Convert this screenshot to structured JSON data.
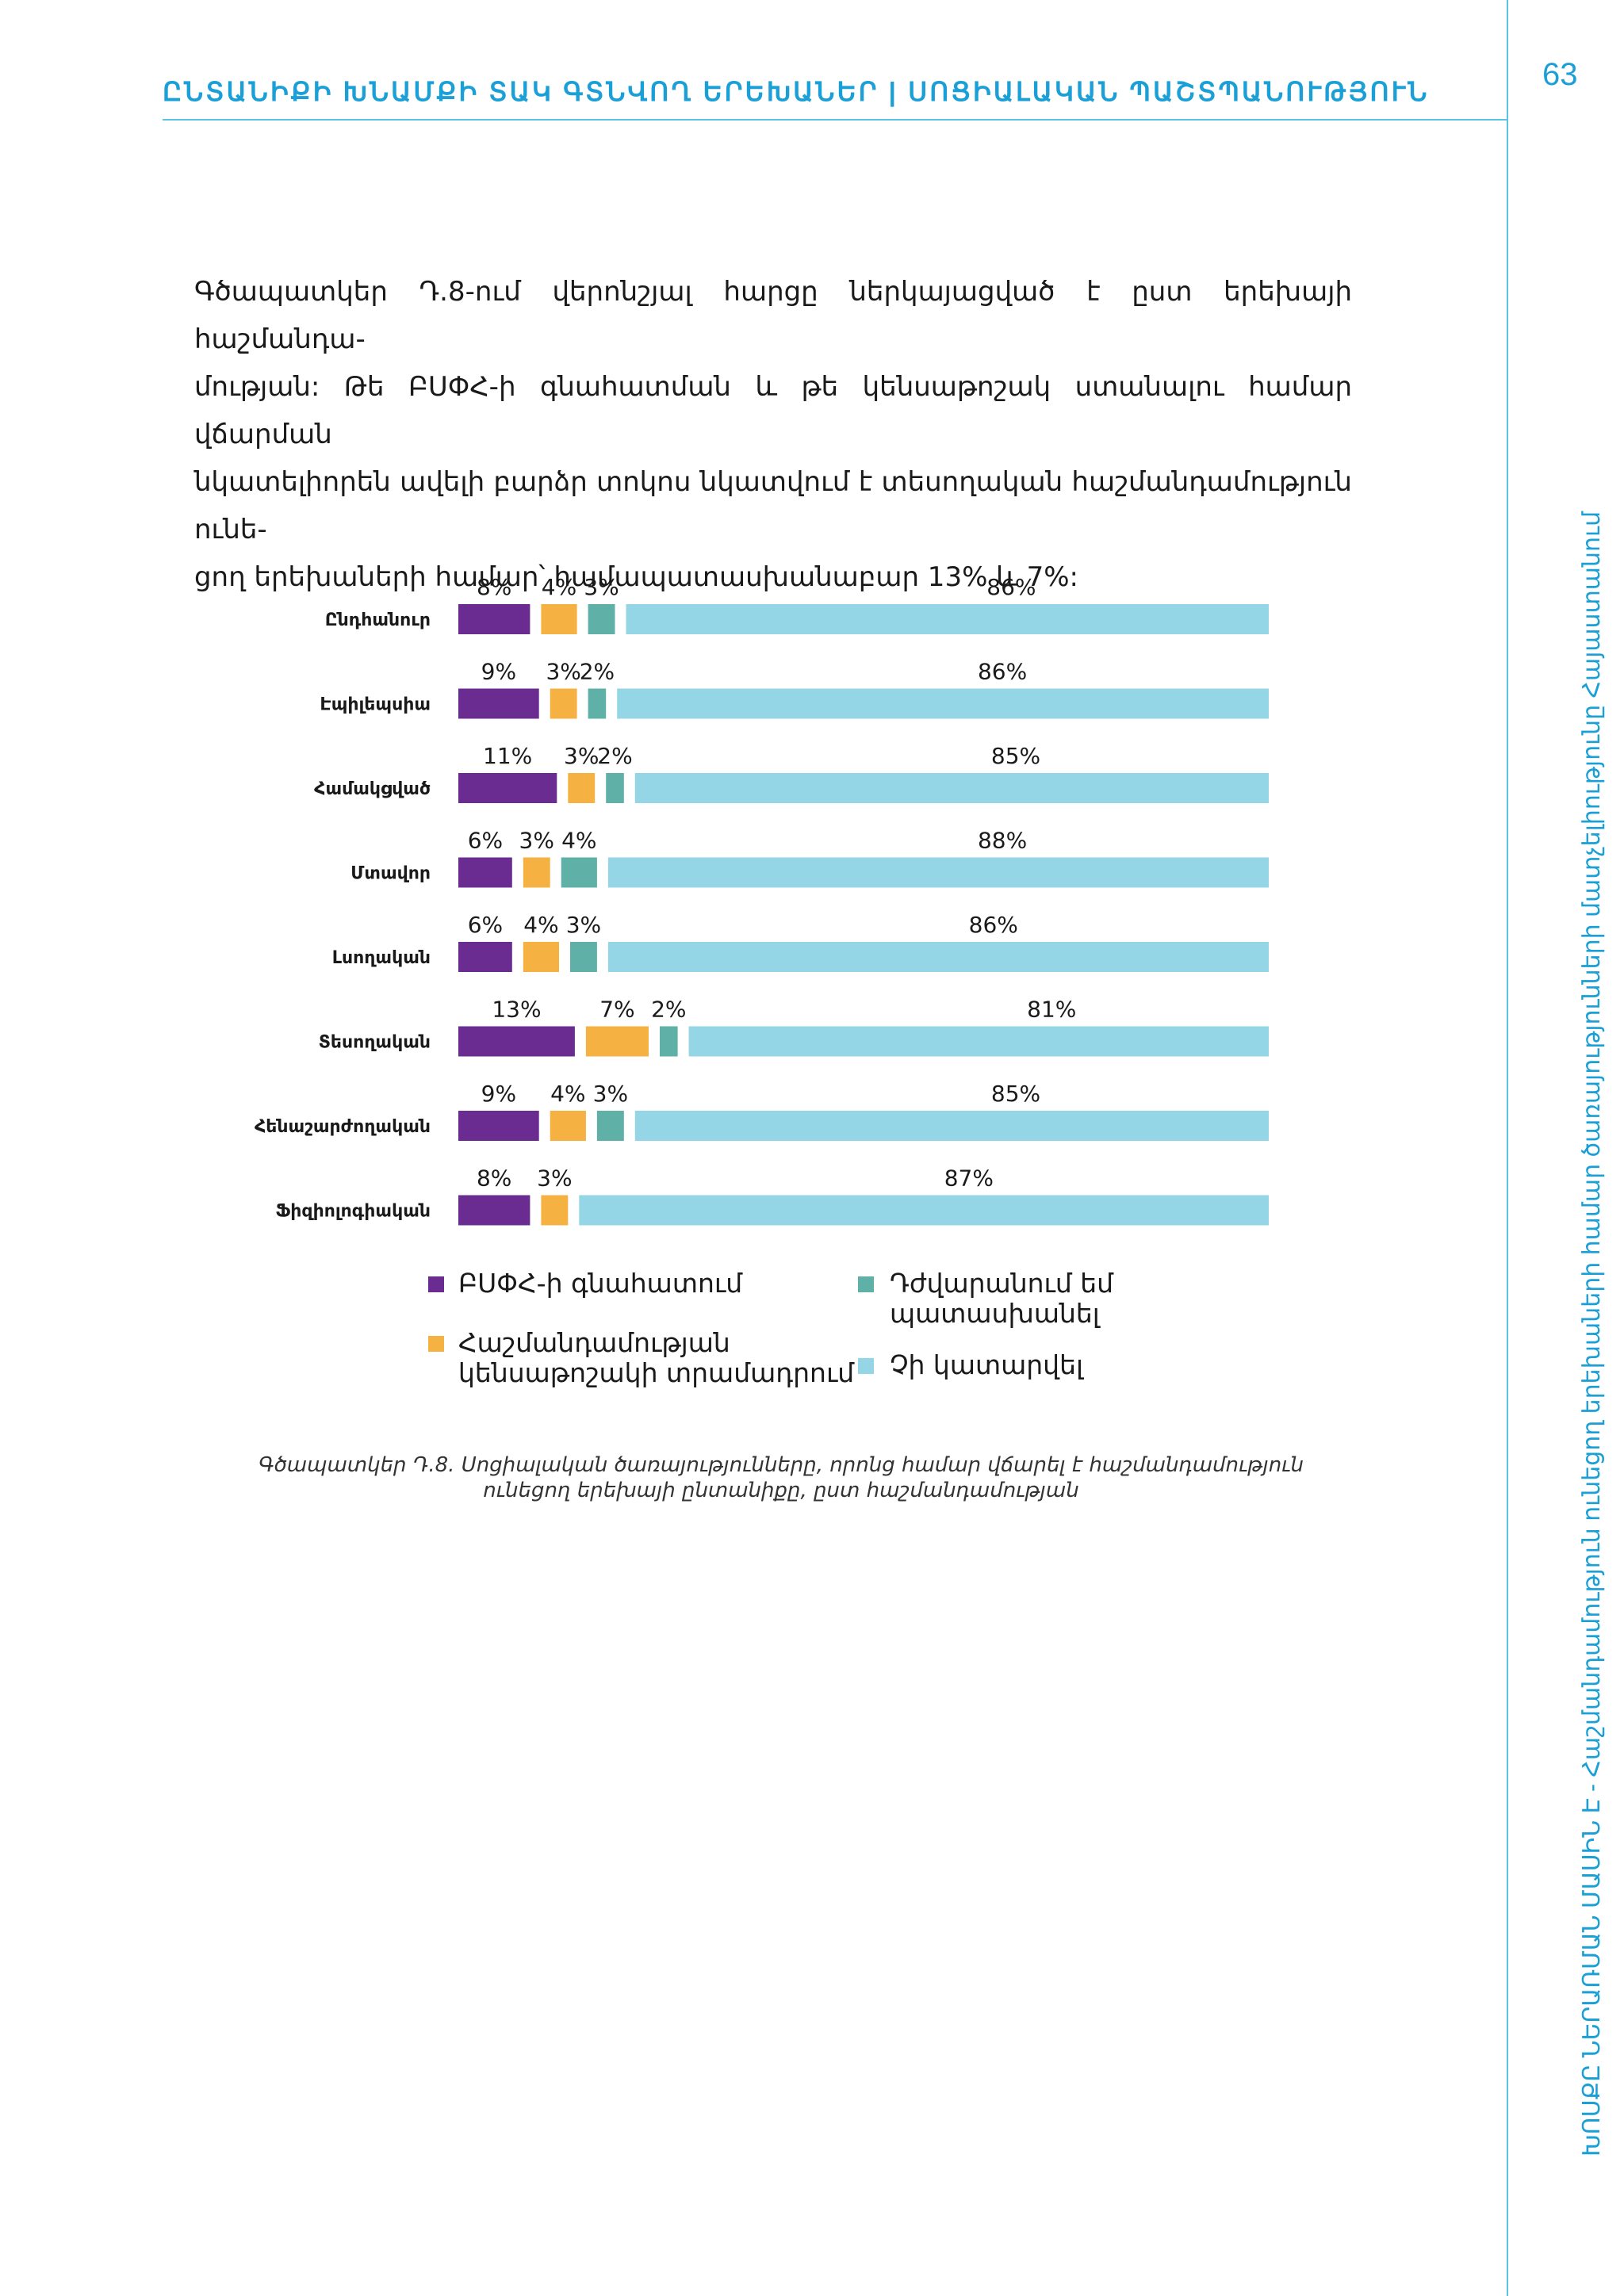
{
  "header": {
    "title": "ԸՆՏԱՆԻՔԻ ԽՆԱՄՔԻ ՏԱԿ ԳՏՆՎՈՂ ԵՐԵԽԱՆԵՐ | ՍՈՑԻԱԼԱԿԱՆ ՊԱՇՏՊԱՆՈՒԹՅՈՒՆ",
    "page_number": "63"
  },
  "side_text": "ԽՈՍՔԸ ՆԵՐԱՌՄԱՆ ՄԱՍԻՆ Է - Հաշմանդամություն ունեցող երեխաների համար ծառայությունների մատչելիությունը Հայաստանում",
  "paragraph": {
    "lines": [
      "Գծապատկեր Դ.8-ում վերոնշյալ հարցը ներկայացված է ըստ երեխայի հաշմանդա-",
      "մության: Թե ԲՍՓՀ-ի գնահատման և թե կենսաթոշակ ստանալու համար վճարման",
      "նկատելիորեն ավելի բարձր տոկոս նկատվում է տեսողական հաշմանդամություն ունե-",
      "ցող երեխաների համար՝ համապատասխանաբար 13% և 7%:"
    ]
  },
  "colors": {
    "purple": "#6a2c91",
    "orange": "#f6b143",
    "teal": "#5fb0a6",
    "lightblue": "#94d6e6",
    "accent": "#1a9fd6"
  },
  "chart_data": {
    "type": "bar",
    "orientation": "horizontal-stacked",
    "categories": [
      "Ընդհանուր",
      "Էպիլեպսիա",
      "Համակցված",
      "Մտավոր",
      "Լսողական",
      "Տեսողական",
      "Հենաշարժողական",
      "Ֆիզիոլոգիական"
    ],
    "series": [
      {
        "name": "ԲՍՓՀ-ի գնահատում",
        "color": "#6a2c91",
        "values": [
          8,
          9,
          11,
          6,
          6,
          13,
          9,
          8
        ]
      },
      {
        "name": "Հաշմանդամության կենսաթոշակի տրամադրում",
        "color": "#f6b143",
        "values": [
          4,
          3,
          3,
          3,
          4,
          7,
          4,
          3
        ]
      },
      {
        "name": "Դժվարանում եմ պատասխանել",
        "color": "#5fb0a6",
        "values": [
          3,
          2,
          2,
          4,
          3,
          2,
          3,
          0
        ]
      },
      {
        "name": "Չի կատարվել",
        "color": "#94d6e6",
        "values": [
          86,
          86,
          85,
          88,
          86,
          81,
          85,
          87
        ]
      }
    ],
    "labels": [
      [
        "8%",
        "4%",
        "3%",
        "86%"
      ],
      [
        "9%",
        "3%",
        "2%",
        "86%"
      ],
      [
        "11%",
        "3%",
        "2%",
        "85%"
      ],
      [
        "6%",
        "3%",
        "4%",
        "88%"
      ],
      [
        "6%",
        "4%",
        "3%",
        "86%"
      ],
      [
        "13%",
        "7%",
        "2%",
        "81%"
      ],
      [
        "9%",
        "4%",
        "3%",
        "85%"
      ],
      [
        "8%",
        "3%",
        "",
        "87%"
      ]
    ],
    "legend": [
      {
        "label": "ԲՍՓՀ-ի գնահատում",
        "color": "#6a2c91"
      },
      {
        "label": "Հաշմանդամության կենսաթոշակի տրամադրում",
        "color": "#f6b143"
      },
      {
        "label": "Դժվարանում եմ պատասխանել",
        "color": "#5fb0a6"
      },
      {
        "label": "Չի կատարվել",
        "color": "#94d6e6"
      }
    ],
    "legend_display": {
      "purple": "ԲՍՓՀ-ի գնահատում",
      "orange_line1": "Հաշմանդամության",
      "orange_line2": "կենսաթոշակի տրամադրում",
      "teal_line1": "Դժվարանում եմ",
      "teal_line2": "պատասխանել",
      "lightblue": "Չի կատարվել"
    },
    "title": "",
    "xlabel": "",
    "ylabel": ""
  },
  "caption": "Գծապատկեր Դ.8. Սոցիալական ծառայությունները, որոնց համար վճարել է հաշմանդամություն ունեցող երեխայի ընտանիքը, ըստ հաշմանդամության"
}
